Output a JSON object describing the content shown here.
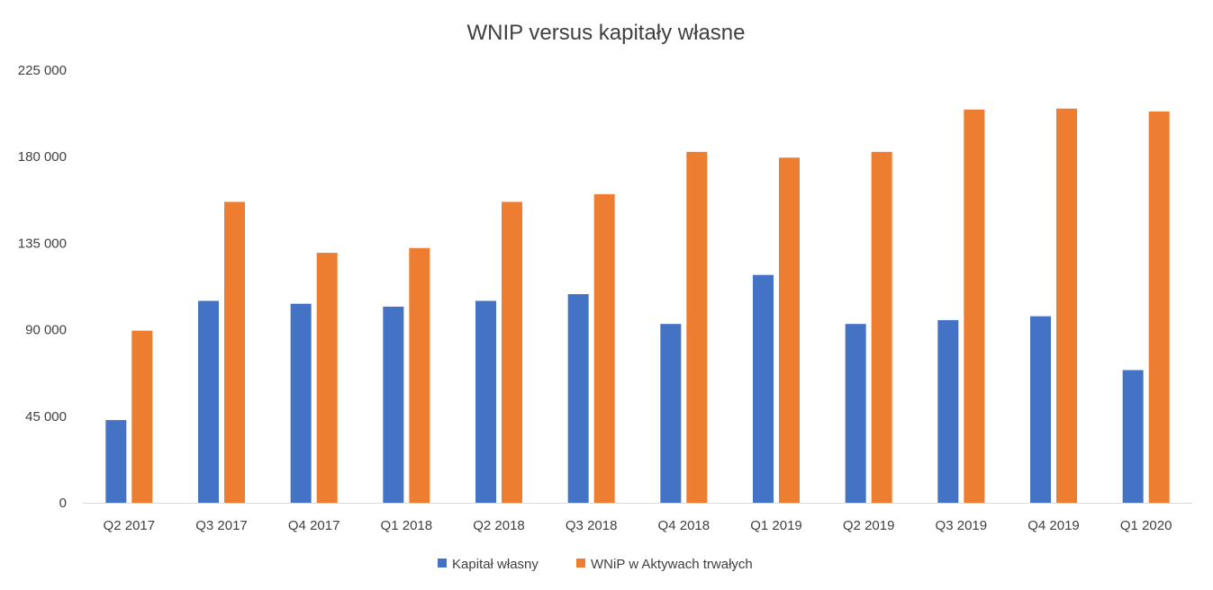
{
  "chart_data": {
    "type": "bar",
    "title": "WNIP versus kapitały własne",
    "xlabel": "",
    "ylabel": "",
    "ylim": [
      0,
      225000
    ],
    "yticks": [
      0,
      45000,
      90000,
      135000,
      180000,
      225000
    ],
    "ytick_labels": [
      "0",
      "45 000",
      "90 000",
      "135 000",
      "180 000",
      "225 000"
    ],
    "grid": false,
    "legend": "bottom",
    "categories": [
      "Q2 2017",
      "Q3 2017",
      "Q4 2017",
      "Q1 2018",
      "Q2 2018",
      "Q3 2018",
      "Q4 2018",
      "Q1 2019",
      "Q2 2019",
      "Q3 2019",
      "Q4 2019",
      "Q1 2020"
    ],
    "series": [
      {
        "name": "Kapitał własny",
        "color": "#4472c4",
        "values": [
          43000,
          105000,
          103500,
          102000,
          105000,
          108500,
          93000,
          118500,
          93000,
          95000,
          97000,
          69000
        ]
      },
      {
        "name": "WNiP w Aktywach trwałych",
        "color": "#ed7d31",
        "values": [
          89500,
          156500,
          130000,
          132500,
          156500,
          160500,
          182500,
          179500,
          182500,
          204500,
          205000,
          203500
        ]
      }
    ]
  }
}
